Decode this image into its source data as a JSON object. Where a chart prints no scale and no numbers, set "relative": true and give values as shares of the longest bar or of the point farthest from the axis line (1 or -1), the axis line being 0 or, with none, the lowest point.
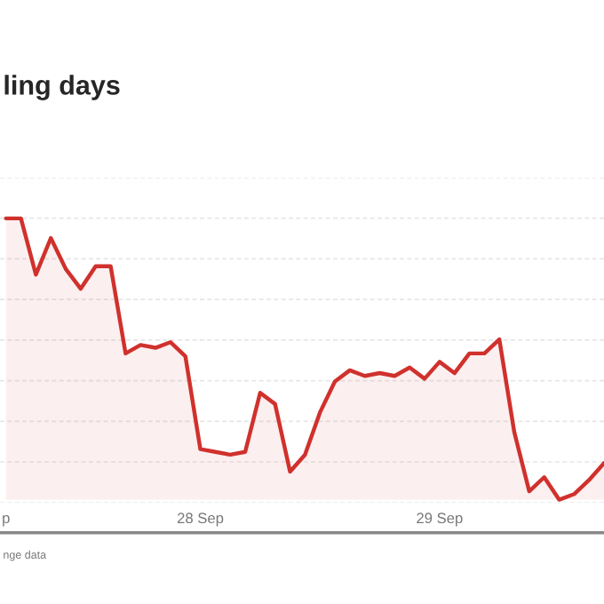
{
  "chart_data": {
    "type": "area",
    "title": "ling days",
    "relative": true,
    "categories": [
      "p",
      null,
      null,
      null,
      null,
      null,
      null,
      null,
      null,
      null,
      null,
      null,
      null,
      "28 Sep",
      null,
      null,
      null,
      null,
      null,
      null,
      null,
      null,
      null,
      null,
      null,
      null,
      null,
      null,
      null,
      "29 Sep",
      null,
      null,
      null,
      null,
      null,
      null,
      null,
      null,
      null,
      null,
      null
    ],
    "series": [
      {
        "color": "#d0312d",
        "values": [
          1.0,
          1.0,
          0.8,
          0.93,
          0.82,
          0.75,
          0.83,
          0.83,
          0.52,
          0.55,
          0.54,
          0.56,
          0.51,
          0.18,
          0.17,
          0.16,
          0.17,
          0.38,
          0.34,
          0.1,
          0.16,
          0.31,
          0.42,
          0.46,
          0.44,
          0.45,
          0.44,
          0.47,
          0.43,
          0.49,
          0.45,
          0.52,
          0.52,
          0.57,
          0.24,
          0.03,
          0.08,
          0.0,
          0.02,
          0.07,
          0.13
        ]
      }
    ],
    "tick_labels": "x",
    "grid": "y",
    "legend": false,
    "annotations": [
      "nge data"
    ]
  }
}
